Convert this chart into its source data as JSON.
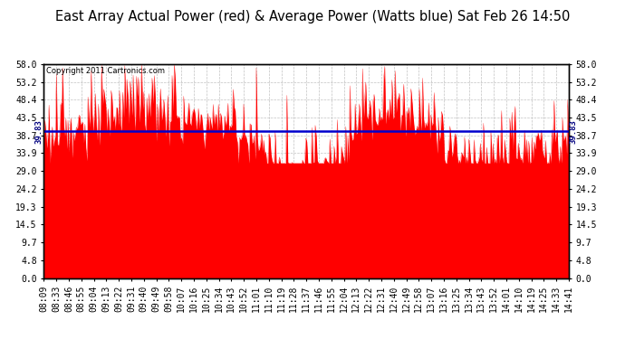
{
  "title": "East Array Actual Power (red) & Average Power (Watts blue) Sat Feb 26 14:50",
  "copyright_text": "Copyright 2011 Cartronics.com",
  "average_value": 39.83,
  "ymin": 0.0,
  "ymax": 58.0,
  "yticks": [
    0.0,
    4.8,
    9.7,
    14.5,
    19.3,
    24.2,
    29.0,
    33.9,
    38.7,
    43.5,
    48.4,
    53.2,
    58.0
  ],
  "x_labels": [
    "08:09",
    "08:33",
    "08:46",
    "08:55",
    "09:04",
    "09:13",
    "09:22",
    "09:31",
    "09:40",
    "09:49",
    "09:58",
    "10:07",
    "10:16",
    "10:25",
    "10:34",
    "10:43",
    "10:52",
    "11:01",
    "11:10",
    "11:19",
    "11:28",
    "11:37",
    "11:46",
    "11:55",
    "12:04",
    "12:13",
    "12:22",
    "12:31",
    "12:40",
    "12:49",
    "12:58",
    "13:07",
    "13:16",
    "13:25",
    "13:34",
    "13:43",
    "13:52",
    "14:01",
    "14:10",
    "14:19",
    "14:25",
    "14:33",
    "14:41"
  ],
  "area_color": "#ff0000",
  "line_color": "#0000cd",
  "background_color": "#ffffff",
  "plot_bg_color": "#ffffff",
  "grid_color": "#bbbbbb",
  "title_fontsize": 10.5,
  "tick_fontsize": 7,
  "avg_label": "39.83",
  "avg_label_color": "#000080"
}
